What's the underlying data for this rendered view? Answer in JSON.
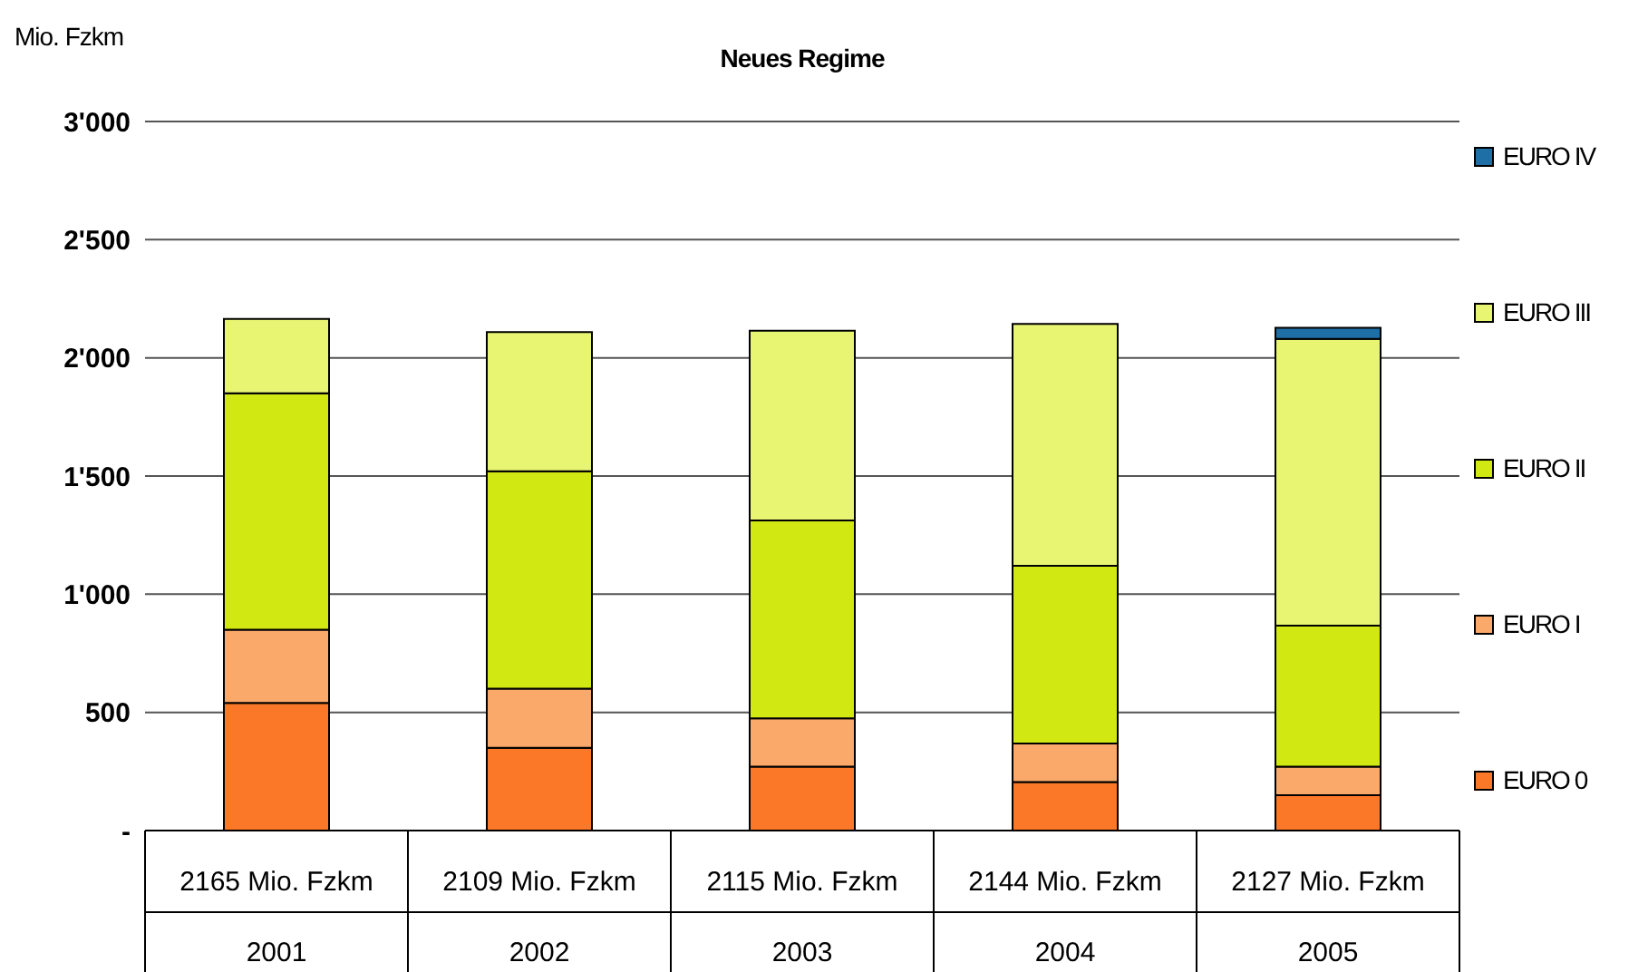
{
  "chart_data": {
    "type": "bar",
    "title": "Neues Regime",
    "ylabel": "Mio. Fzkm",
    "stacked": true,
    "categories": [
      "2001",
      "2002",
      "2003",
      "2004",
      "2005"
    ],
    "totals": [
      "2165 Mio. Fzkm",
      "2109 Mio. Fzkm",
      "2115 Mio. Fzkm",
      "2144 Mio. Fzkm",
      "2127 Mio. Fzkm"
    ],
    "series": [
      {
        "name": "EURO 0",
        "color": "#fb7828",
        "values": [
          540,
          350,
          270,
          205,
          150
        ]
      },
      {
        "name": "EURO I",
        "color": "#fba96b",
        "values": [
          310,
          250,
          205,
          163,
          120
        ]
      },
      {
        "name": "EURO II",
        "color": "#d2e812",
        "values": [
          1000,
          920,
          837,
          752,
          597
        ]
      },
      {
        "name": "EURO III",
        "color": "#e7f573",
        "values": [
          315,
          589,
          803,
          1024,
          1213
        ]
      },
      {
        "name": "EURO IV",
        "color": "#1e6fa5",
        "values": [
          null,
          null,
          null,
          null,
          47
        ]
      }
    ],
    "ylim": [
      0,
      3000
    ],
    "yticks": [
      {
        "value": 0,
        "label": "-"
      },
      500,
      {
        "value": 1000,
        "label": "1'000"
      },
      {
        "value": 1500,
        "label": "1'500"
      },
      {
        "value": 2000,
        "label": "2'000"
      },
      {
        "value": 2500,
        "label": "2'500"
      },
      {
        "value": 3000,
        "label": "3'000"
      }
    ],
    "grid": "y",
    "legend": "right"
  }
}
